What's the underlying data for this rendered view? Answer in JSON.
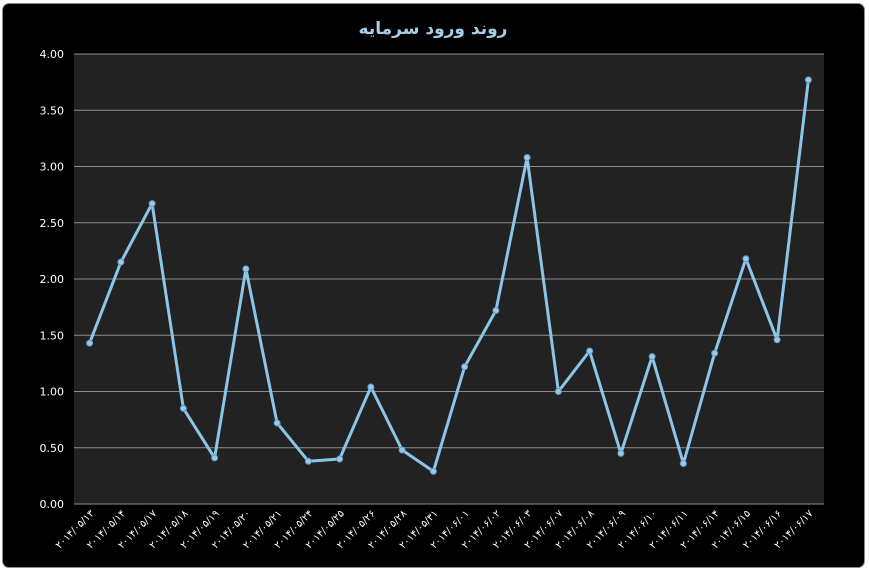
{
  "colors": {
    "background": "#000000",
    "plot_area": "#222222",
    "gridline": "#8c8c8c",
    "line": "#8cc5e8",
    "marker": "#9dc8ea",
    "title": "#a8cde8",
    "text": "#ffffff"
  },
  "chart_data": {
    "type": "line",
    "title": "روند ورود سرمایه",
    "xlabel": "",
    "ylabel": "",
    "ylim": [
      0,
      4
    ],
    "yticks": [
      "0.00",
      "0.50",
      "1.00",
      "1.50",
      "2.00",
      "2.50",
      "3.00",
      "3.50",
      "4.00"
    ],
    "grid": true,
    "legend": "none",
    "categories": [
      "۲۰۱۴/۰۵/۱۳",
      "۲۰۱۴/۰۵/۱۴",
      "۲۰۱۴/۰۵/۱۷",
      "۲۰۱۴/۰۵/۱۸",
      "۲۰۱۴/۰۵/۱۹",
      "۲۰۱۴/۰۵/۲۰",
      "۲۰۱۴/۰۵/۲۱",
      "۲۰۱۴/۰۵/۲۴",
      "۲۰۱۴/۰۵/۲۵",
      "۲۰۱۴/۰۵/۲۶",
      "۲۰۱۴/۰۵/۲۸",
      "۲۰۱۴/۰۵/۳۱",
      "۲۰۱۴/۰۶/۰۱",
      "۲۰۱۴/۰۶/۰۲",
      "۲۰۱۴/۰۶/۰۳",
      "۲۰۱۴/۰۶/۰۷",
      "۲۰۱۴/۰۶/۰۸",
      "۲۰۱۴/۰۶/۰۹",
      "۲۰۱۴/۰۶/۱۰",
      "۲۰۱۴/۰۶/۱۱",
      "۲۰۱۴/۰۶/۱۴",
      "۲۰۱۴/۰۶/۱۵",
      "۲۰۱۴/۰۶/۱۶",
      "۲۰۱۴/۰۶/۱۷"
    ],
    "values": [
      1.43,
      2.15,
      2.67,
      0.85,
      0.41,
      2.09,
      0.72,
      0.38,
      0.4,
      1.04,
      0.48,
      0.29,
      1.22,
      1.72,
      3.08,
      1.0,
      1.36,
      0.45,
      1.31,
      0.36,
      1.34,
      2.18,
      1.46,
      3.77
    ]
  }
}
